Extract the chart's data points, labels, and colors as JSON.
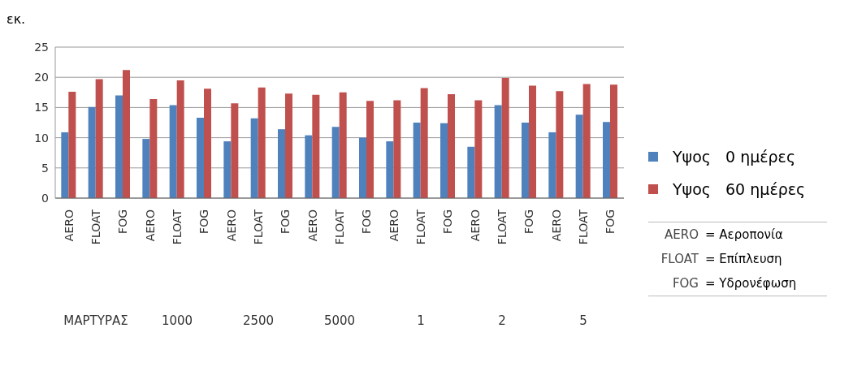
{
  "chart_data": {
    "type": "bar",
    "ylabel": "εκ.",
    "categories": [
      "AERO",
      "FLOAT",
      "FOG",
      "AERO",
      "FLOAT",
      "FOG",
      "AERO",
      "FLOAT",
      "FOG",
      "AERO",
      "FLOAT",
      "FOG",
      "AERO",
      "FLOAT",
      "FOG",
      "AERO",
      "FLOAT",
      "FOG",
      "AERO",
      "FLOAT",
      "FOG"
    ],
    "series": [
      {
        "name": "Υψος   0 ημέρες",
        "color": "#4f81bd",
        "values": [
          10.9,
          15.1,
          17.0,
          9.8,
          15.4,
          13.3,
          9.4,
          13.2,
          11.4,
          10.4,
          11.8,
          10.0,
          9.4,
          12.5,
          12.4,
          8.5,
          15.4,
          12.5,
          10.9,
          13.8,
          12.6
        ]
      },
      {
        "name": "Υψος   60 ημέρες",
        "color": "#c0504d",
        "values": [
          17.6,
          19.7,
          21.2,
          16.4,
          19.5,
          18.1,
          15.7,
          18.3,
          17.3,
          17.1,
          17.5,
          16.1,
          16.2,
          18.2,
          17.2,
          16.2,
          19.9,
          18.6,
          17.7,
          18.9,
          18.8
        ]
      }
    ],
    "ylim": [
      0,
      25
    ],
    "yticks": [
      0,
      5,
      10,
      15,
      20,
      25
    ],
    "grid": "y",
    "legend": "right",
    "annotations": [
      "ΜΑΡΤΥΡΑΣ",
      "1000",
      "2500",
      "5000",
      "1",
      "2",
      "5",
      "= Αεροπονία",
      "= Επίπλευση",
      "= Υδρονέφωση"
    ]
  }
}
